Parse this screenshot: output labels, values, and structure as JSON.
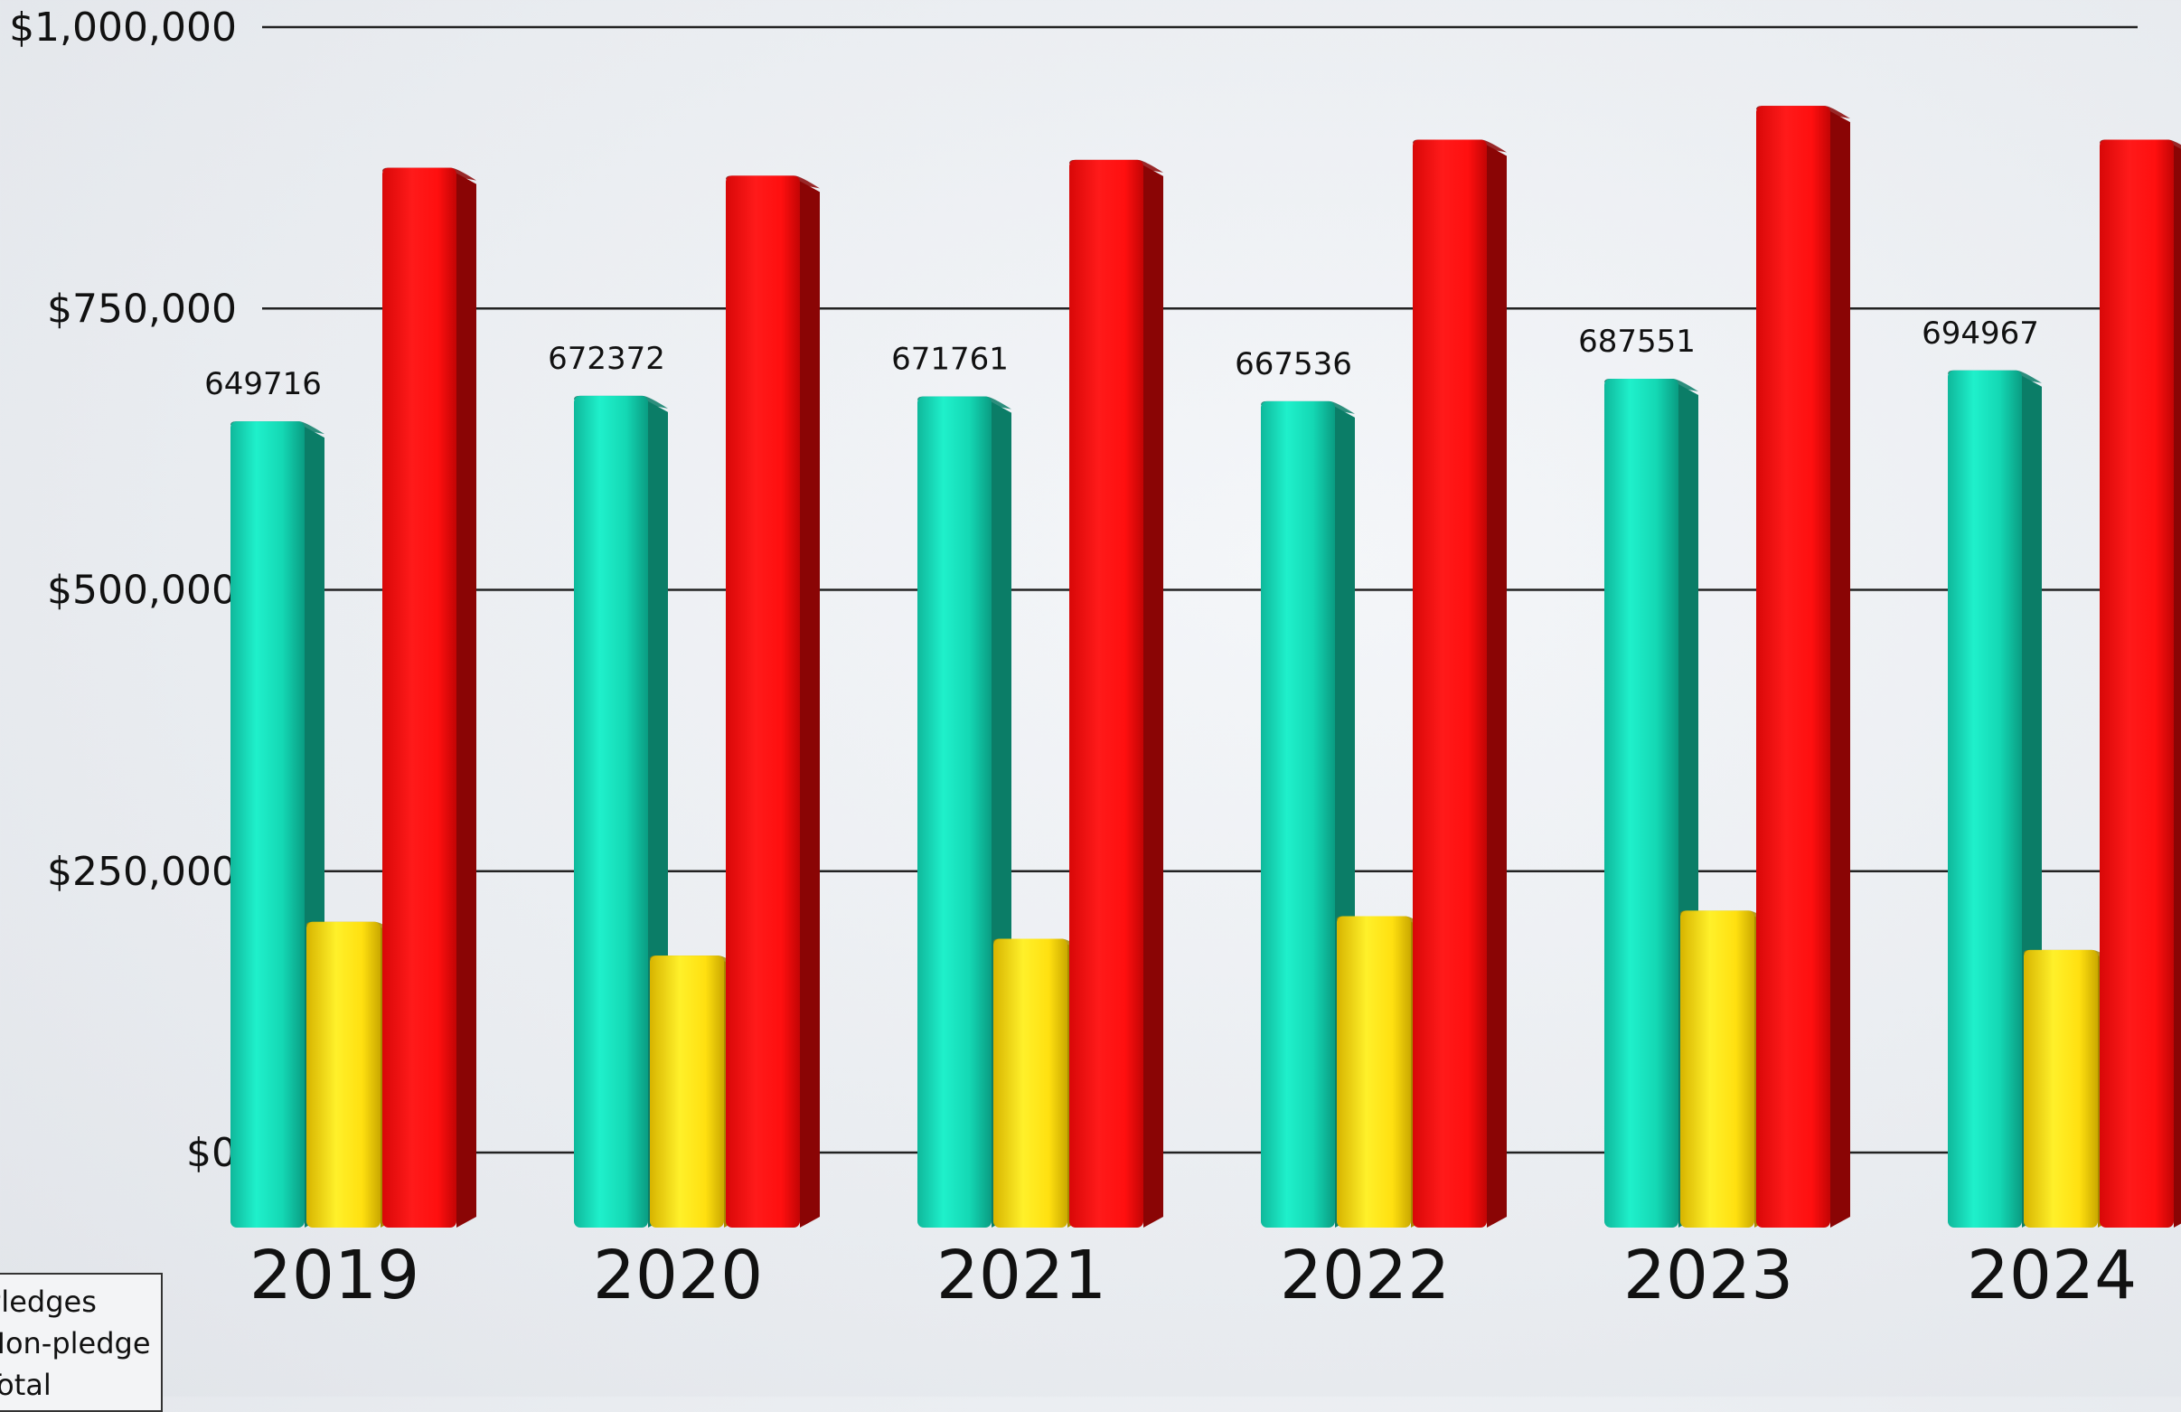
{
  "chart_data": {
    "type": "bar",
    "title": "",
    "xlabel": "",
    "ylabel": "",
    "categories": [
      "2019",
      "2020",
      "2021",
      "2022",
      "2023",
      "2024"
    ],
    "series": [
      {
        "name": "pledges",
        "values": [
          649716,
          672372,
          671761,
          667536,
          687551,
          694967
        ],
        "color": "#19e8c0",
        "labels": [
          "649716",
          "672372",
          "671761",
          "667536",
          "687551",
          "694967"
        ]
      },
      {
        "name": "non-pledge",
        "values": [
          205000,
          175000,
          190000,
          210000,
          215000,
          180000
        ],
        "color": "#ffe116"
      },
      {
        "name": "total",
        "values": [
          875000,
          868000,
          882000,
          900000,
          930000,
          900000
        ],
        "color": "#ff1010"
      }
    ],
    "ylim": [
      0,
      1000000
    ],
    "yticks": [
      0,
      250000,
      500000,
      750000,
      1000000
    ],
    "ytick_labels": [
      "$0",
      "$250,000",
      "$500,000",
      "$750,000",
      "$1,000,000"
    ],
    "grid": true,
    "legend_position": "bottom-left"
  },
  "legend": {
    "items": [
      "Pledges",
      "Non-pledge",
      "Total"
    ]
  }
}
